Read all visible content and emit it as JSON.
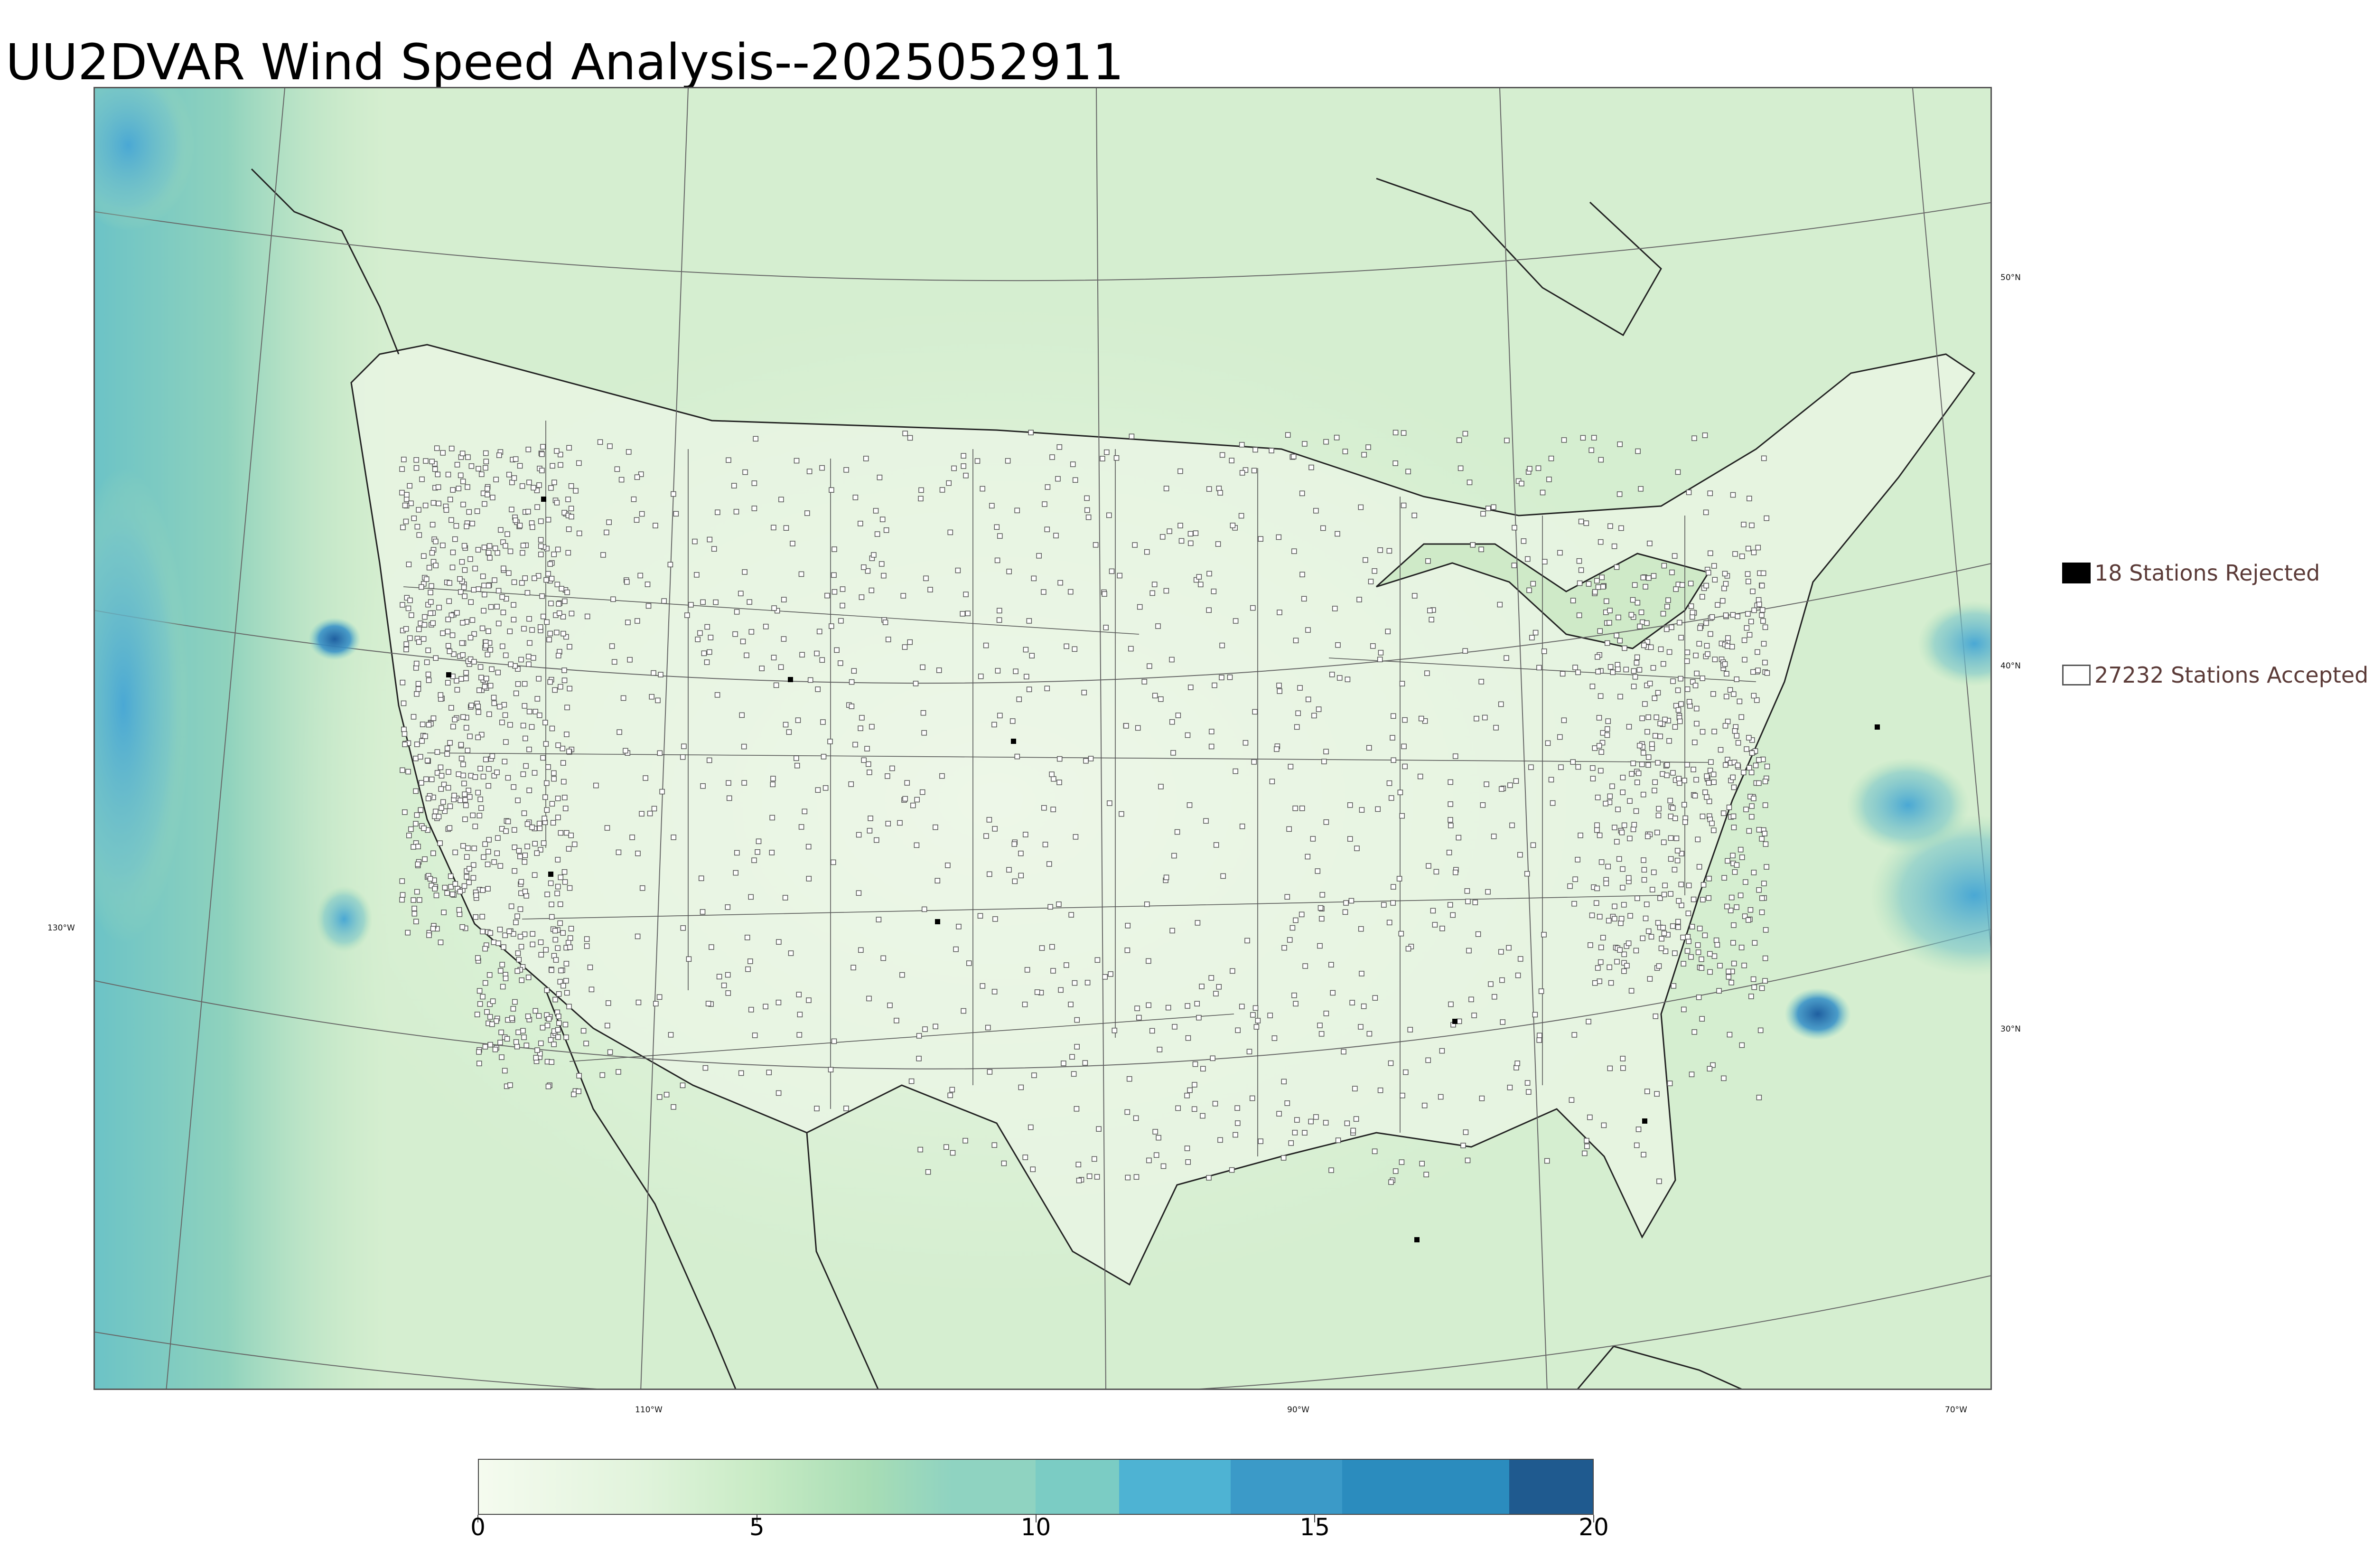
{
  "title": "UU2DVAR Wind Speed Analysis--2025052911",
  "map": {
    "longitude_labels": [
      "130°W",
      "110°W",
      "90°W",
      "70°W"
    ],
    "latitude_labels": [
      "50°N",
      "40°N",
      "30°N"
    ],
    "stations_accepted_marker": "open-square",
    "stations_rejected_marker": "filled-square"
  },
  "legend": {
    "rejected": {
      "label": "18 Stations Rejected",
      "count": 18,
      "color": "#000000"
    },
    "accepted": {
      "label": "27232 Stations Accepted",
      "count": 27232,
      "color": "#ffffff"
    },
    "text_color": "#5b3b38"
  },
  "colorbar": {
    "min": 0,
    "max": 20,
    "ticks": [
      "0",
      "5",
      "10",
      "15",
      "20"
    ],
    "stops": [
      {
        "value": 0,
        "color": "#f5fbef"
      },
      {
        "value": 3,
        "color": "#e0f3db"
      },
      {
        "value": 5,
        "color": "#c8ebc5"
      },
      {
        "value": 7,
        "color": "#a8ddb5"
      },
      {
        "value": 8.5,
        "color": "#8fd3c1"
      },
      {
        "value": 10,
        "color": "#7bccc4"
      },
      {
        "value": 11.5,
        "color": "#4eb3d3"
      },
      {
        "value": 13.5,
        "color": "#3b9ac8"
      },
      {
        "value": 15.5,
        "color": "#2b8cbe"
      },
      {
        "value": 18.5,
        "color": "#1f5a8f"
      }
    ],
    "end": {
      "value": 20,
      "color": "#1f4e80"
    }
  }
}
